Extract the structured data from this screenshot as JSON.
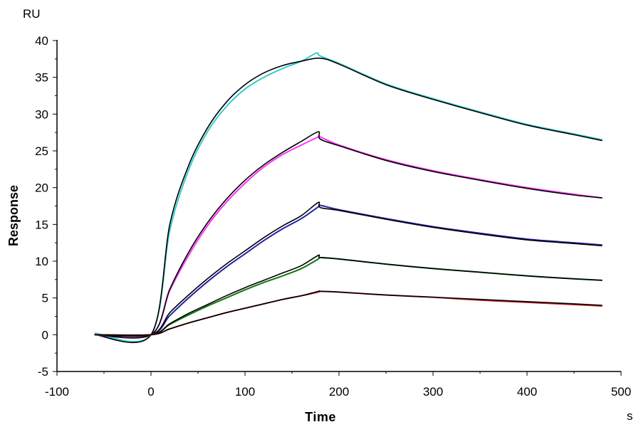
{
  "chart_data": {
    "type": "line",
    "title": "",
    "xlabel": "Time",
    "ylabel": "Response",
    "x_unit": "s",
    "y_unit": "RU",
    "xlim": [
      -100,
      500
    ],
    "ylim": [
      -5,
      40
    ],
    "x_ticks": [
      -100,
      0,
      100,
      200,
      300,
      400,
      500
    ],
    "y_ticks": [
      -5,
      0,
      5,
      10,
      15,
      20,
      25,
      30,
      35,
      40
    ],
    "x_tick_labels": [
      "-100",
      "0",
      "100",
      "200",
      "300",
      "400",
      "500"
    ],
    "y_tick_labels": [
      "-5",
      "0",
      "5",
      "10",
      "15",
      "20",
      "25",
      "30",
      "35",
      "40"
    ],
    "grid": false,
    "legend": "none",
    "association_end": 180,
    "series": [
      {
        "color": "#33CCCC",
        "x": [
          -60,
          0,
          20,
          40,
          60,
          80,
          100,
          120,
          140,
          160,
          176,
          180,
          200,
          250,
          300,
          350,
          400,
          450,
          480
        ],
        "y": [
          0.2,
          0,
          14.2,
          22.4,
          27.6,
          31.0,
          33.4,
          35.0,
          36.2,
          37.2,
          38.3,
          37.9,
          36.9,
          34.1,
          32.1,
          30.3,
          28.6,
          27.3,
          26.5
        ]
      },
      {
        "color": "#000000",
        "x": [
          -60,
          0,
          20,
          40,
          60,
          80,
          100,
          120,
          140,
          160,
          180,
          200,
          250,
          300,
          350,
          400,
          450,
          480
        ],
        "y": [
          0,
          0,
          15.0,
          23.0,
          28.1,
          31.6,
          34.0,
          35.6,
          36.6,
          37.2,
          37.6,
          36.8,
          34.0,
          32.0,
          30.2,
          28.5,
          27.2,
          26.4
        ]
      },
      {
        "color": "#FF33FF",
        "x": [
          -60,
          0,
          20,
          40,
          60,
          80,
          100,
          120,
          140,
          160,
          178,
          180,
          200,
          250,
          300,
          350,
          400,
          450,
          480
        ],
        "y": [
          0,
          0,
          6.0,
          10.8,
          14.8,
          18.0,
          20.6,
          22.8,
          24.5,
          25.8,
          26.9,
          26.9,
          25.8,
          23.8,
          22.3,
          21.1,
          20.0,
          19.1,
          18.6
        ]
      },
      {
        "color": "#000000",
        "x": [
          -60,
          0,
          20,
          40,
          60,
          80,
          100,
          120,
          140,
          160,
          178,
          180,
          200,
          250,
          300,
          350,
          400,
          450,
          480
        ],
        "y": [
          0,
          0,
          6.2,
          11.2,
          15.2,
          18.4,
          21.0,
          23.1,
          24.8,
          26.3,
          27.6,
          26.6,
          25.7,
          23.7,
          22.2,
          21.0,
          19.9,
          19.0,
          18.6
        ]
      },
      {
        "color": "#2222AA",
        "x": [
          -60,
          0,
          20,
          40,
          60,
          80,
          100,
          120,
          140,
          160,
          178,
          180,
          200,
          250,
          300,
          350,
          400,
          450,
          480
        ],
        "y": [
          0,
          0,
          2.6,
          5.0,
          7.2,
          9.2,
          11.0,
          12.8,
          14.4,
          15.8,
          17.4,
          17.6,
          17.0,
          15.8,
          14.7,
          13.8,
          13.0,
          12.5,
          12.2
        ]
      },
      {
        "color": "#000000",
        "x": [
          -60,
          0,
          20,
          40,
          60,
          80,
          100,
          120,
          140,
          160,
          178,
          180,
          200,
          250,
          300,
          350,
          400,
          450,
          480
        ],
        "y": [
          0,
          0,
          3.0,
          5.4,
          7.6,
          9.6,
          11.4,
          13.2,
          14.8,
          16.2,
          18.0,
          17.3,
          16.9,
          15.7,
          14.6,
          13.7,
          12.9,
          12.4,
          12.1
        ]
      },
      {
        "color": "#117711",
        "x": [
          -60,
          0,
          20,
          40,
          60,
          80,
          100,
          120,
          140,
          160,
          178,
          180,
          200,
          250,
          300,
          350,
          400,
          450,
          480
        ],
        "y": [
          0,
          0,
          1.4,
          2.7,
          3.9,
          5.0,
          6.1,
          7.1,
          8.0,
          9.0,
          10.3,
          10.5,
          10.3,
          9.6,
          9.0,
          8.5,
          8.0,
          7.6,
          7.4
        ]
      },
      {
        "color": "#000000",
        "x": [
          -60,
          0,
          20,
          40,
          60,
          80,
          100,
          120,
          140,
          160,
          178,
          180,
          200,
          250,
          300,
          350,
          400,
          450,
          480
        ],
        "y": [
          0,
          0,
          1.5,
          2.9,
          4.1,
          5.3,
          6.4,
          7.4,
          8.4,
          9.4,
          10.8,
          10.5,
          10.3,
          9.6,
          9.0,
          8.5,
          8.0,
          7.6,
          7.4
        ]
      },
      {
        "color": "#CC2222",
        "x": [
          -60,
          0,
          20,
          40,
          60,
          80,
          100,
          120,
          140,
          160,
          178,
          180,
          200,
          250,
          300,
          350,
          400,
          450,
          480
        ],
        "y": [
          0,
          0,
          0.8,
          1.6,
          2.3,
          3.0,
          3.6,
          4.2,
          4.8,
          5.3,
          5.8,
          5.9,
          5.8,
          5.4,
          5.1,
          4.7,
          4.4,
          4.1,
          3.9
        ]
      },
      {
        "color": "#000000",
        "x": [
          -60,
          0,
          20,
          40,
          60,
          80,
          100,
          120,
          140,
          160,
          178,
          180,
          200,
          250,
          300,
          350,
          400,
          450,
          480
        ],
        "y": [
          0,
          0,
          0.8,
          1.6,
          2.3,
          3.0,
          3.6,
          4.2,
          4.8,
          5.3,
          5.9,
          5.9,
          5.8,
          5.4,
          5.1,
          4.8,
          4.5,
          4.2,
          4.0
        ]
      }
    ]
  }
}
